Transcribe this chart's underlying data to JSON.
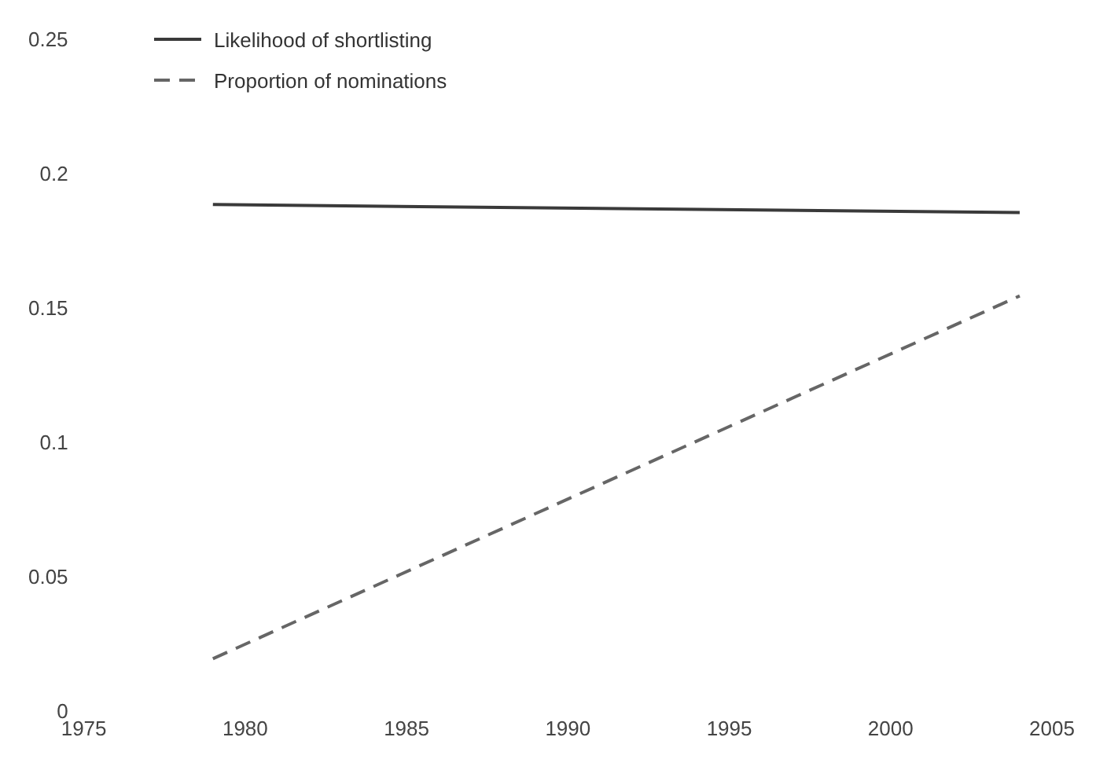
{
  "chart_data": {
    "type": "line",
    "x": [
      1979,
      2004
    ],
    "xlim": [
      1975,
      2005
    ],
    "xticks": [
      1975,
      1980,
      1985,
      1990,
      1995,
      2000,
      2005
    ],
    "ylim": [
      0,
      0.25
    ],
    "yticks": [
      0,
      0.05,
      0.1,
      0.15,
      0.2,
      0.25
    ],
    "grid": false,
    "legend": "top left",
    "marker": "none",
    "series": [
      {
        "name": "Likelihood of shortlisting",
        "color": "#3a3a3a",
        "values": [
          0.189,
          0.186
        ],
        "line_style": "solid"
      },
      {
        "name": "Proportion of nominations",
        "color": "#666666",
        "values": [
          0.02,
          0.155
        ],
        "line_style": "dashed"
      }
    ]
  }
}
